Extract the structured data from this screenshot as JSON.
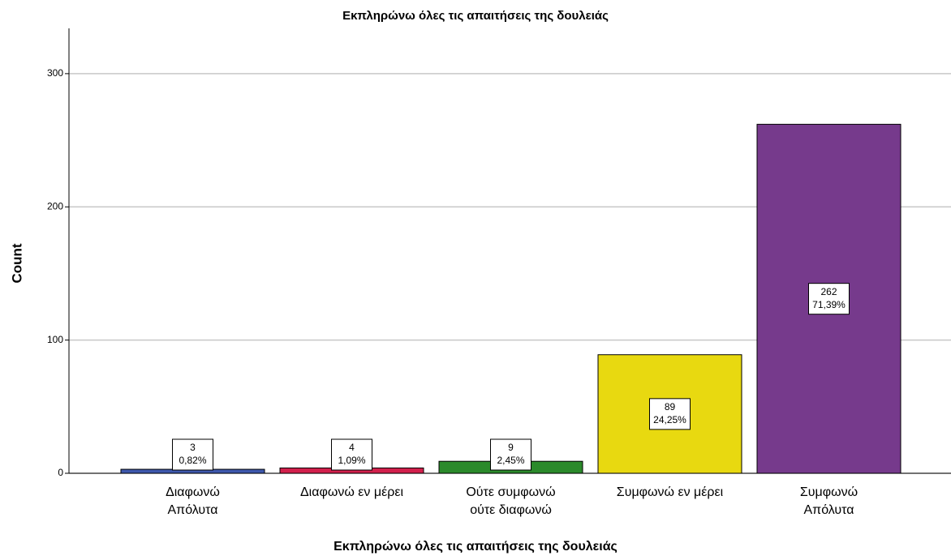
{
  "chart_data": {
    "type": "bar",
    "title": "Εκπληρώνω όλες τις απαιτήσεις της δουλειάς",
    "xlabel": "Εκπληρώνω όλες τις απαιτήσεις της δουλειάς",
    "ylabel": "Count",
    "categories": [
      [
        "Διαφωνώ",
        "Απόλυτα"
      ],
      [
        "Διαφωνώ εν μέρει"
      ],
      [
        "Ούτε συμφωνώ",
        "ούτε διαφωνώ"
      ],
      [
        "Συμφωνώ εν μέρει"
      ],
      [
        "Συμφωνώ",
        "Απόλυτα"
      ]
    ],
    "values": [
      3,
      4,
      9,
      89,
      262
    ],
    "percent_labels": [
      "0,82%",
      "1,09%",
      "2,45%",
      "24,25%",
      "71,39%"
    ],
    "colors": [
      "#3e58ac",
      "#d2204c",
      "#2b8a2b",
      "#e8d910",
      "#763a8c"
    ],
    "ylim": [
      0,
      334
    ],
    "yticks": [
      0,
      100,
      200,
      300
    ],
    "grid": true
  }
}
